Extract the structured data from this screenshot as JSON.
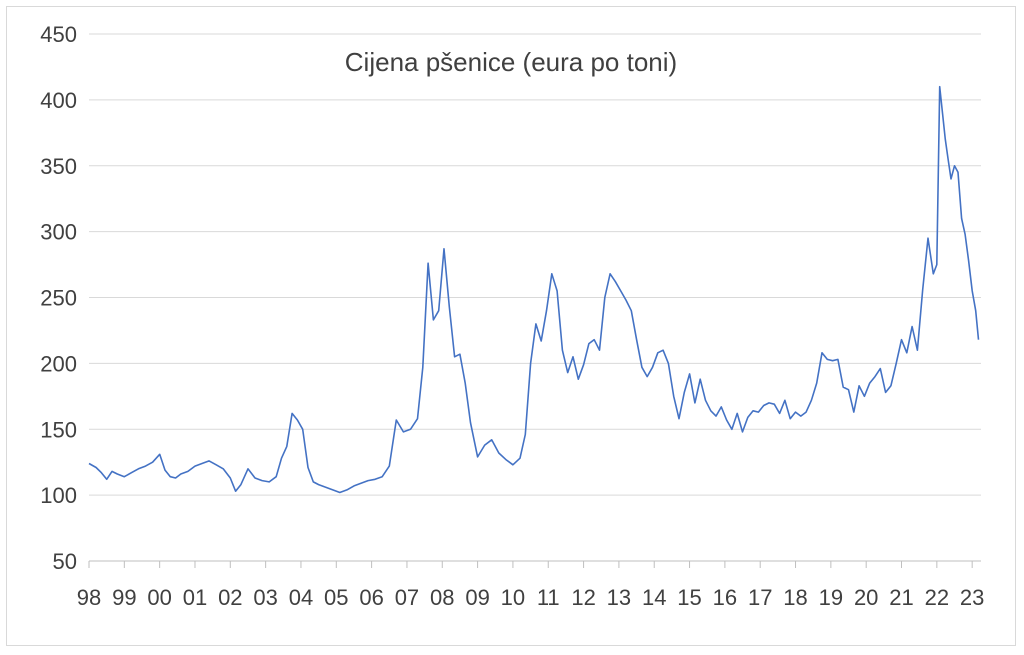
{
  "chart_data": {
    "type": "line",
    "title": "Cijena pšenice (eura po toni)",
    "xlabel": "",
    "ylabel": "",
    "ylim": [
      50,
      450
    ],
    "yticks": [
      50,
      100,
      150,
      200,
      250,
      300,
      350,
      400,
      450
    ],
    "xlim": [
      1998.0,
      2023.25
    ],
    "xtick_labels": [
      "98",
      "99",
      "00",
      "01",
      "02",
      "03",
      "04",
      "05",
      "06",
      "07",
      "08",
      "09",
      "10",
      "11",
      "12",
      "13",
      "14",
      "15",
      "16",
      "17",
      "18",
      "19",
      "20",
      "21",
      "22",
      "23"
    ],
    "grid": "horizontal",
    "legend": "none",
    "color": "#4472c4",
    "series": [
      {
        "x": [
          1998.0,
          1998.2,
          1998.35,
          1998.5,
          1998.65,
          1998.8,
          1999.0,
          1999.2,
          1999.4,
          1999.6,
          1999.8,
          2000.0,
          2000.15,
          2000.3,
          2000.45,
          2000.6,
          2000.8,
          2001.0,
          2001.2,
          2001.4,
          2001.6,
          2001.8,
          2002.0,
          2002.15,
          2002.3,
          2002.5,
          2002.7,
          2002.9,
          2003.1,
          2003.3,
          2003.45,
          2003.6,
          2003.75,
          2003.9,
          2004.05,
          2004.2,
          2004.35,
          2004.5,
          2004.7,
          2004.9,
          2005.1,
          2005.3,
          2005.5,
          2005.7,
          2005.9,
          2006.1,
          2006.3,
          2006.5,
          2006.7,
          2006.9,
          2007.1,
          2007.3,
          2007.45,
          2007.6,
          2007.75,
          2007.9,
          2008.05,
          2008.2,
          2008.35,
          2008.5,
          2008.65,
          2008.8,
          2009.0,
          2009.2,
          2009.4,
          2009.6,
          2009.8,
          2010.0,
          2010.2,
          2010.35,
          2010.5,
          2010.65,
          2010.8,
          2010.95,
          2011.1,
          2011.25,
          2011.4,
          2011.55,
          2011.7,
          2011.85,
          2012.0,
          2012.15,
          2012.3,
          2012.45,
          2012.6,
          2012.75,
          2012.9,
          2013.05,
          2013.2,
          2013.35,
          2013.5,
          2013.65,
          2013.8,
          2013.95,
          2014.1,
          2014.25,
          2014.4,
          2014.55,
          2014.7,
          2014.85,
          2015.0,
          2015.15,
          2015.3,
          2015.45,
          2015.6,
          2015.75,
          2015.9,
          2016.05,
          2016.2,
          2016.35,
          2016.5,
          2016.65,
          2016.8,
          2016.95,
          2017.1,
          2017.25,
          2017.4,
          2017.55,
          2017.7,
          2017.85,
          2018.0,
          2018.15,
          2018.3,
          2018.45,
          2018.6,
          2018.75,
          2018.9,
          2019.05,
          2019.2,
          2019.35,
          2019.5,
          2019.65,
          2019.8,
          2019.95,
          2020.1,
          2020.25,
          2020.4,
          2020.55,
          2020.7,
          2020.85,
          2021.0,
          2021.15,
          2021.3,
          2021.45,
          2021.6,
          2021.75,
          2021.9,
          2022.0,
          2022.08,
          2022.16,
          2022.24,
          2022.32,
          2022.4,
          2022.5,
          2022.6,
          2022.7,
          2022.8,
          2022.9,
          2023.0,
          2023.1,
          2023.18
        ],
        "y": [
          124,
          121,
          117,
          112,
          118,
          116,
          114,
          117,
          120,
          122,
          125,
          131,
          119,
          114,
          113,
          116,
          118,
          122,
          124,
          126,
          123,
          120,
          113,
          103,
          108,
          120,
          113,
          111,
          110,
          114,
          128,
          137,
          162,
          157,
          150,
          121,
          110,
          108,
          106,
          104,
          102,
          104,
          107,
          109,
          111,
          112,
          114,
          122,
          157,
          148,
          150,
          158,
          197,
          276,
          233,
          240,
          287,
          243,
          205,
          207,
          185,
          155,
          129,
          138,
          142,
          132,
          127,
          123,
          128,
          146,
          200,
          230,
          217,
          240,
          268,
          255,
          210,
          193,
          205,
          188,
          199,
          215,
          218,
          210,
          250,
          268,
          262,
          255,
          248,
          240,
          218,
          197,
          190,
          197,
          208,
          210,
          200,
          175,
          158,
          178,
          192,
          170,
          188,
          172,
          164,
          160,
          167,
          157,
          150,
          162,
          148,
          159,
          164,
          163,
          168,
          170,
          169,
          162,
          172,
          158,
          163,
          160,
          163,
          172,
          185,
          208,
          203,
          202,
          203,
          182,
          180,
          163,
          183,
          175,
          185,
          190,
          196,
          178,
          183,
          200,
          218,
          208,
          228,
          210,
          256,
          295,
          268,
          275,
          410,
          390,
          370,
          355,
          340,
          350,
          345,
          310,
          298,
          278,
          255,
          240,
          218
        ]
      }
    ]
  }
}
